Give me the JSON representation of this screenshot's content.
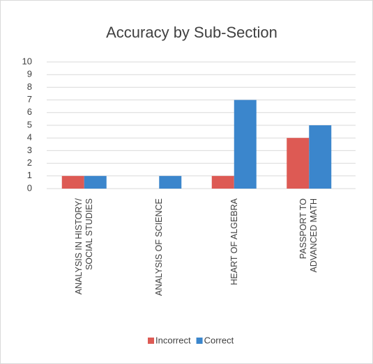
{
  "chart_data": {
    "type": "bar",
    "title": "Accuracy by Sub-Section",
    "categories": [
      "ANALYSIS IN HISTORY/\nSOCIAL STUDIES",
      "ANALYSIS OF SCIENCE",
      "HEART OF ALGEBRA",
      "PASSPORT TO\nADVANCED MATH"
    ],
    "series": [
      {
        "name": "Incorrect",
        "color": "#dd5a54",
        "values": [
          1,
          0,
          1,
          4
        ]
      },
      {
        "name": "Correct",
        "color": "#3b86cc",
        "values": [
          1,
          1,
          7,
          5
        ]
      }
    ],
    "ylim": [
      0,
      10
    ],
    "yticks": [
      0,
      1,
      2,
      3,
      4,
      5,
      6,
      7,
      8,
      9,
      10
    ],
    "grid": true,
    "legend": "bottom"
  }
}
